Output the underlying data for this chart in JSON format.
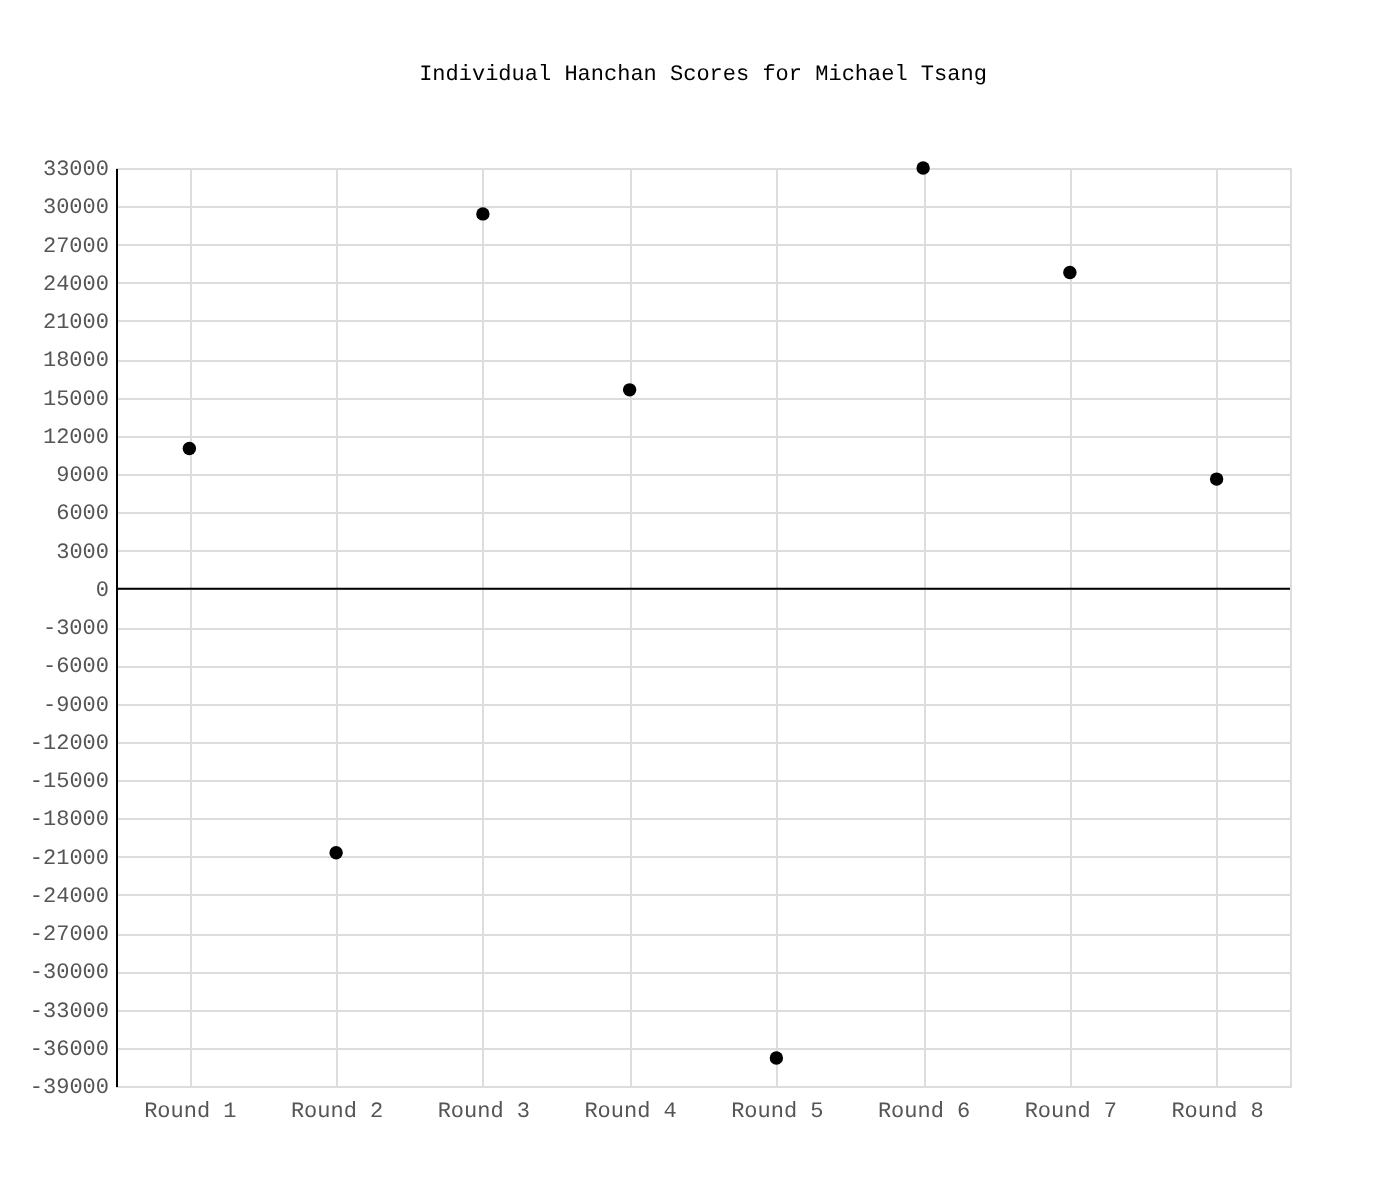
{
  "chart_data": {
    "type": "scatter",
    "title": "Individual Hanchan Scores for Michael Tsang",
    "categories": [
      "Round 1",
      "Round 2",
      "Round 3",
      "Round 4",
      "Round 5",
      "Round 6",
      "Round 7",
      "Round 8"
    ],
    "series": [
      {
        "color": "#000000",
        "values": [
          11000,
          -20700,
          29400,
          15600,
          -36800,
          33000,
          24800,
          8600
        ]
      }
    ],
    "ylim": [
      -39000,
      33000
    ],
    "yticks": [
      -39000,
      -36000,
      -33000,
      -30000,
      -27000,
      -24000,
      -21000,
      -18000,
      -15000,
      -12000,
      -9000,
      -6000,
      -3000,
      0,
      3000,
      6000,
      9000,
      12000,
      15000,
      18000,
      21000,
      24000,
      27000,
      30000,
      33000
    ],
    "ref_lines": [
      {
        "axis": "y",
        "value": 0,
        "color": "#000000"
      }
    ],
    "grid": true,
    "marker": "circle"
  }
}
